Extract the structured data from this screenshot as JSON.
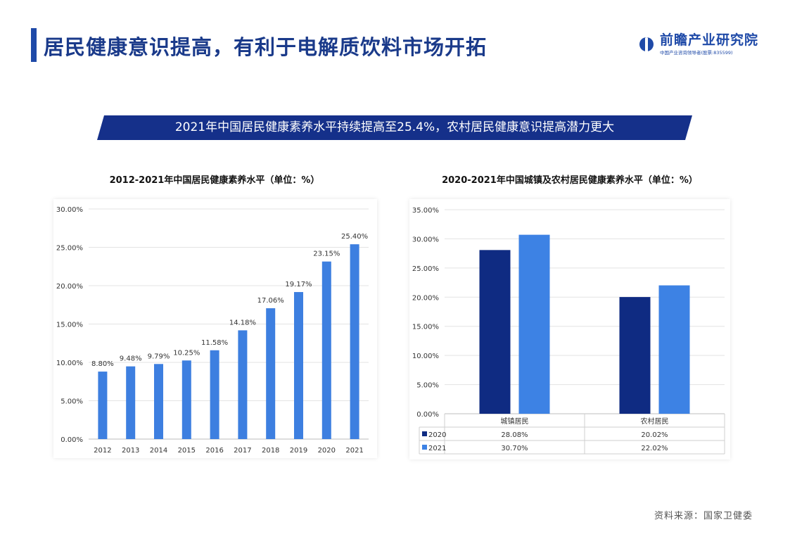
{
  "page": {
    "title": "居民健康意识提高，有利于电解质饮料市场开拓",
    "banner": "2021年中国居民健康素养水平持续提高至25.4%，农村居民健康意识提高潜力更大",
    "source": "资料来源：国家卫健委"
  },
  "logo": {
    "name": "前瞻产业研究院",
    "subtitle": "中国产业咨询领导者(股票:835599)",
    "brand_color": "#1f4aa8"
  },
  "chart_data": [
    {
      "type": "bar",
      "title": "2012-2021年中国居民健康素养水平（单位：%）",
      "categories": [
        "2012",
        "2013",
        "2014",
        "2015",
        "2016",
        "2017",
        "2018",
        "2019",
        "2020",
        "2021"
      ],
      "values": [
        8.8,
        9.48,
        9.79,
        10.25,
        11.58,
        14.18,
        17.06,
        19.17,
        23.15,
        25.4
      ],
      "value_labels": [
        "8.80%",
        "9.48%",
        "9.79%",
        "10.25%",
        "11.58%",
        "14.18%",
        "17.06%",
        "19.17%",
        "23.15%",
        "25.40%"
      ],
      "ylim": [
        0,
        30
      ],
      "yticks": [
        "0.00%",
        "5.00%",
        "10.00%",
        "15.00%",
        "20.00%",
        "25.00%",
        "30.00%"
      ],
      "grid": true,
      "color": "#3d7fe0"
    },
    {
      "type": "bar",
      "title": "2020-2021年中国城镇及农村居民健康素养水平（单位：%）",
      "categories": [
        "城镇居民",
        "农村居民"
      ],
      "series": [
        {
          "name": "2020",
          "values": [
            28.08,
            20.02
          ],
          "labels": [
            "28.08%",
            "20.02%"
          ],
          "color": "#0f2b82"
        },
        {
          "name": "2021",
          "values": [
            30.7,
            22.02
          ],
          "labels": [
            "30.70%",
            "22.02%"
          ],
          "color": "#3d82e4"
        }
      ],
      "ylim": [
        0,
        35
      ],
      "yticks": [
        "0.00%",
        "5.00%",
        "10.00%",
        "15.00%",
        "20.00%",
        "25.00%",
        "30.00%",
        "35.00%"
      ],
      "grid": true,
      "legend": "data-table"
    }
  ]
}
